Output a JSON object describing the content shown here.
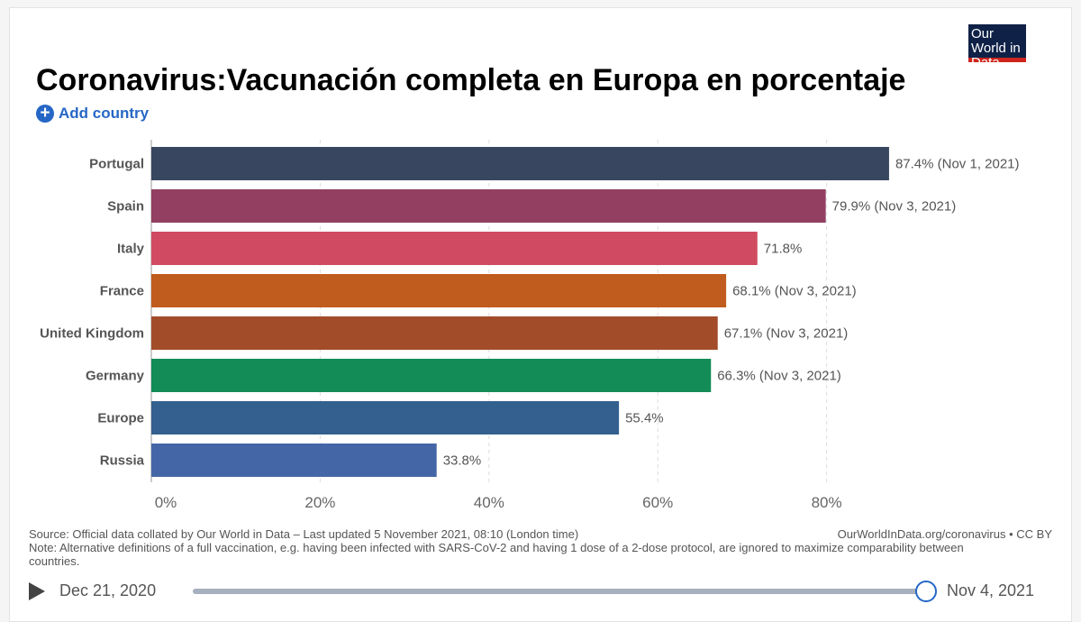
{
  "header": {
    "title": "Coronavirus:Vacunación completa en Europa en porcentaje",
    "logo": "Our World in Data",
    "add_country": "Add country",
    "add_icon": "plus-circle-icon"
  },
  "chart_data": {
    "type": "bar",
    "orientation": "horizontal",
    "title": "Coronavirus:Vacunación completa en Europa en porcentaje",
    "categories": [
      "Portugal",
      "Spain",
      "Italy",
      "France",
      "United Kingdom",
      "Germany",
      "Europe",
      "Russia"
    ],
    "values": [
      87.4,
      79.9,
      71.8,
      68.1,
      67.1,
      66.3,
      55.4,
      33.8
    ],
    "labels": [
      "87.4% (Nov 1, 2021)",
      "79.9% (Nov 3, 2021)",
      "71.8%",
      "68.1% (Nov 3, 2021)",
      "67.1% (Nov 3, 2021)",
      "66.3% (Nov 3, 2021)",
      "55.4%",
      "33.8%"
    ],
    "colors": [
      "#38475f",
      "#923f62",
      "#d04b61",
      "#c05c1e",
      "#a24c2a",
      "#138c57",
      "#33608f",
      "#4566a6"
    ],
    "xticks": [
      "0%",
      "20%",
      "40%",
      "60%",
      "80%"
    ],
    "xtick_values": [
      0,
      20,
      40,
      60,
      80
    ],
    "xlim": [
      0,
      90
    ],
    "grid": true,
    "unit": "%"
  },
  "footer": {
    "source": "Source: Official data collated by Our World in Data – Last updated 5 November 2021, 08:10 (London time)",
    "url": "OurWorldInData.org/coronavirus • CC BY",
    "note": "Note: Alternative definitions of a full vaccination, e.g. having been infected with SARS-CoV-2 and having 1 dose of a 2-dose protocol, are ignored to maximize comparability between countries."
  },
  "timeline": {
    "start": "Dec 21, 2020",
    "end": "Nov 4, 2021",
    "play_icon": "play-icon",
    "position": 1.0
  }
}
